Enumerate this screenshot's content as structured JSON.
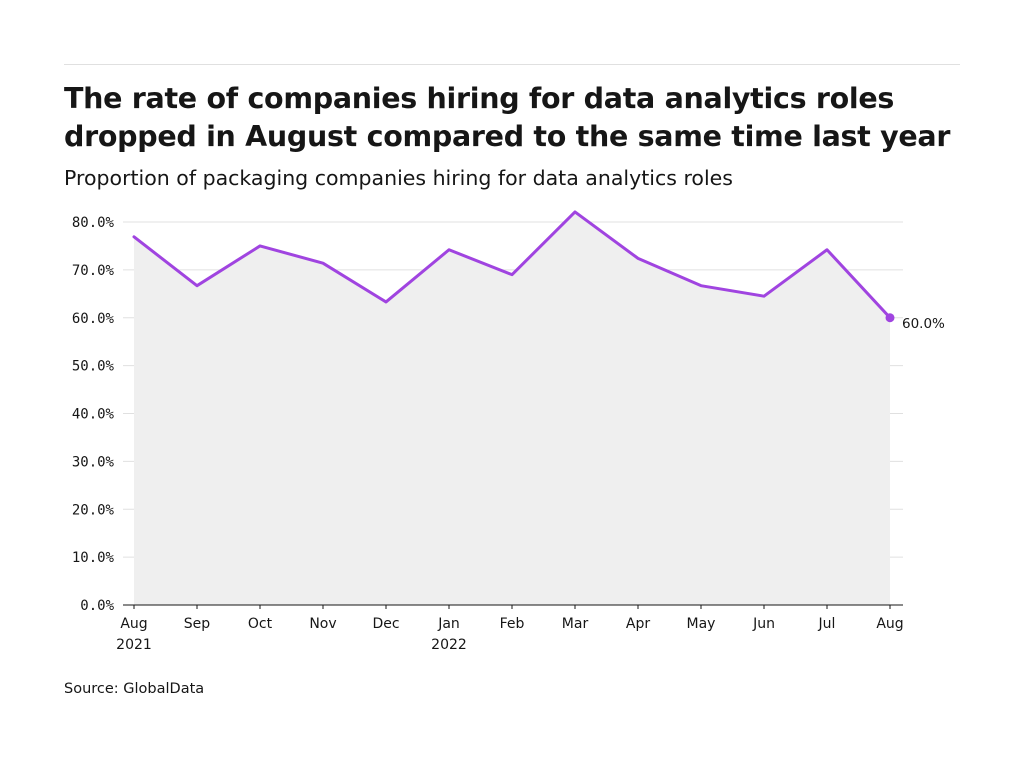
{
  "title": "The rate of companies hiring for data analytics roles dropped in August compared to the same time last year",
  "subtitle": "Proportion of packaging companies hiring for data analytics roles",
  "source": "Source: GlobalData",
  "colors": {
    "line": "#a044e0",
    "area": "#efefef",
    "grid": "#e0e0e0",
    "axis": "#161616",
    "text": "#161616"
  },
  "chart_data": {
    "type": "area",
    "x": [
      "Aug 2021",
      "Sep",
      "Oct",
      "Nov",
      "Dec",
      "Jan 2022",
      "Feb",
      "Mar",
      "Apr",
      "May",
      "Jun",
      "Jul",
      "Aug"
    ],
    "x_tick_labels": [
      [
        "Aug",
        "2021"
      ],
      [
        "Sep"
      ],
      [
        "Oct"
      ],
      [
        "Nov"
      ],
      [
        "Dec"
      ],
      [
        "Jan",
        "2022"
      ],
      [
        "Feb"
      ],
      [
        "Mar"
      ],
      [
        "Apr"
      ],
      [
        "May"
      ],
      [
        "Jun"
      ],
      [
        "Jul"
      ],
      [
        "Aug"
      ]
    ],
    "series": [
      {
        "values": [
          76.9,
          66.7,
          75.0,
          71.4,
          63.3,
          74.2,
          69.0,
          82.1,
          72.4,
          66.7,
          64.5,
          74.2,
          60.0
        ]
      }
    ],
    "ylim": [
      0,
      80
    ],
    "y_ticks": [
      0,
      10,
      20,
      30,
      40,
      50,
      60,
      70,
      80
    ],
    "y_tick_labels": [
      "0.0%",
      "10.0%",
      "20.0%",
      "30.0%",
      "40.0%",
      "50.0%",
      "60.0%",
      "70.0%",
      "80.0%"
    ],
    "end_label": "60.0%",
    "grid": true,
    "xlabel": "",
    "ylabel": ""
  }
}
